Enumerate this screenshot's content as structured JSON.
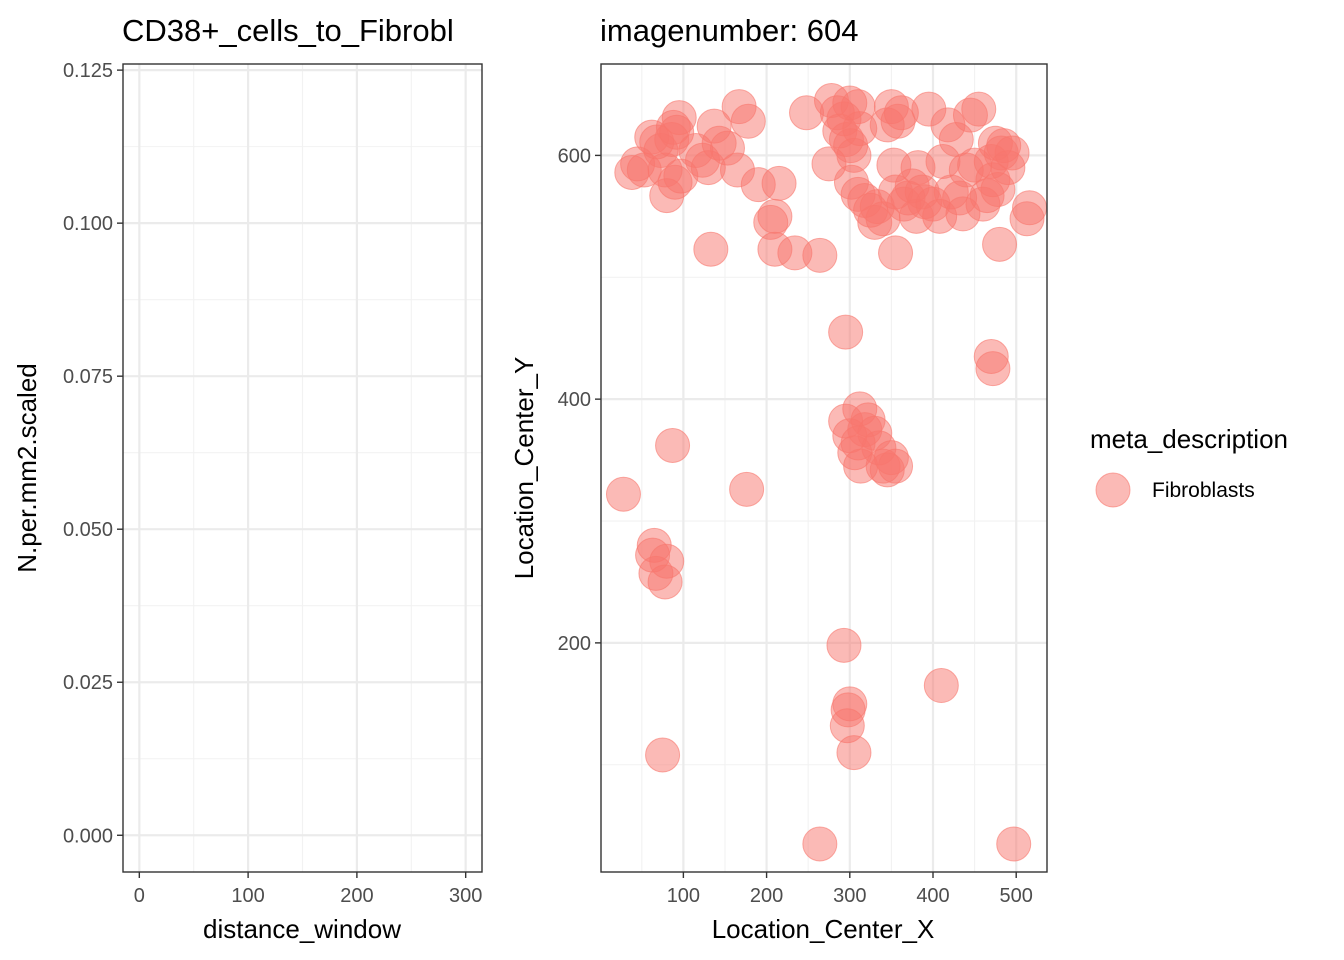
{
  "chart_data": [
    {
      "type": "line",
      "title": "CD38+_cells_to_Fibrobl",
      "xlabel": "distance_window",
      "ylabel": "N.per.mm2.scaled",
      "xlim": [
        -15,
        315
      ],
      "ylim": [
        -0.006,
        0.126
      ],
      "xticks": [
        0,
        100,
        200,
        300
      ],
      "xtick_labels": [
        "0",
        "100",
        "200",
        "300"
      ],
      "yticks": [
        0,
        0.025,
        0.05,
        0.075,
        0.1,
        0.125
      ],
      "ytick_labels": [
        "0.000",
        "0.025",
        "0.050",
        "0.075",
        "0.100",
        "0.125"
      ],
      "grid": true,
      "series": []
    },
    {
      "type": "scatter",
      "title": "imagenumber:  604",
      "xlabel": "Location_Center_X",
      "ylabel": "Location_Center_Y",
      "xlim": [
        1,
        537
      ],
      "ylim": [
        12,
        675
      ],
      "xticks": [
        100,
        200,
        300,
        400,
        500
      ],
      "xtick_labels": [
        "100",
        "200",
        "300",
        "400",
        "500"
      ],
      "yticks": [
        200,
        400,
        600
      ],
      "ytick_labels": [
        "200",
        "400",
        "600"
      ],
      "grid": true,
      "legend_position": "right",
      "legend_title": "meta_description",
      "series": [
        {
          "name": "Fibroblasts",
          "color": "#F8766D",
          "points": [
            [
              38,
              586
            ],
            [
              45,
              593
            ],
            [
              53,
              588
            ],
            [
              62,
              615
            ],
            [
              68,
              611
            ],
            [
              73,
              604
            ],
            [
              78,
              588
            ],
            [
              80,
              567
            ],
            [
              86,
              613
            ],
            [
              88,
              623
            ],
            [
              92,
              619
            ],
            [
              95,
              631
            ],
            [
              90,
              578
            ],
            [
              97,
              583
            ],
            [
              115,
              604
            ],
            [
              123,
              596
            ],
            [
              130,
              590
            ],
            [
              137,
              624
            ],
            [
              143,
              610
            ],
            [
              153,
              606
            ],
            [
              165,
              588
            ],
            [
              167,
              640
            ],
            [
              178,
              628
            ],
            [
              190,
              576
            ],
            [
              205,
              545
            ],
            [
              210,
              550
            ],
            [
              215,
              577
            ],
            [
              210,
              523
            ],
            [
              234,
              520
            ],
            [
              264,
              518
            ],
            [
              133,
              523
            ],
            [
              248,
              635
            ],
            [
              278,
              645
            ],
            [
              285,
              635
            ],
            [
              293,
              630
            ],
            [
              300,
              643
            ],
            [
              288,
              620
            ],
            [
              296,
              613
            ],
            [
              301,
              608
            ],
            [
              305,
              600
            ],
            [
              310,
              640
            ],
            [
              312,
              622
            ],
            [
              275,
              593
            ],
            [
              302,
              578
            ],
            [
              310,
              568
            ],
            [
              318,
              563
            ],
            [
              325,
              555
            ],
            [
              330,
              545
            ],
            [
              333,
              558
            ],
            [
              340,
              548
            ],
            [
              345,
              625
            ],
            [
              350,
              640
            ],
            [
              353,
              592
            ],
            [
              355,
              570
            ],
            [
              358,
              628
            ],
            [
              362,
              635
            ],
            [
              365,
              560
            ],
            [
              370,
              565
            ],
            [
              375,
              575
            ],
            [
              380,
              550
            ],
            [
              382,
              590
            ],
            [
              387,
              570
            ],
            [
              390,
              562
            ],
            [
              395,
              638
            ],
            [
              400,
              560
            ],
            [
              408,
              550
            ],
            [
              412,
              595
            ],
            [
              418,
              625
            ],
            [
              422,
              570
            ],
            [
              428,
              613
            ],
            [
              432,
              565
            ],
            [
              436,
              552
            ],
            [
              440,
              588
            ],
            [
              445,
              633
            ],
            [
              450,
              592
            ],
            [
              455,
              638
            ],
            [
              460,
              560
            ],
            [
              465,
              567
            ],
            [
              470,
              595
            ],
            [
              472,
              580
            ],
            [
              475,
              610
            ],
            [
              478,
              572
            ],
            [
              482,
              602
            ],
            [
              485,
              608
            ],
            [
              490,
              590
            ],
            [
              495,
              602
            ],
            [
              480,
              527
            ],
            [
              513,
              548
            ],
            [
              516,
              557
            ],
            [
              355,
              520
            ],
            [
              295,
              455
            ],
            [
              470,
              435
            ],
            [
              472,
              425
            ],
            [
              87,
              362
            ],
            [
              28,
              322
            ],
            [
              176,
              326
            ],
            [
              295,
              382
            ],
            [
              312,
              392
            ],
            [
              318,
              375
            ],
            [
              322,
              383
            ],
            [
              330,
              372
            ],
            [
              335,
              360
            ],
            [
              340,
              345
            ],
            [
              345,
              342
            ],
            [
              350,
              352
            ],
            [
              355,
              345
            ],
            [
              300,
              370
            ],
            [
              306,
              356
            ],
            [
              310,
              364
            ],
            [
              313,
              345
            ],
            [
              65,
              280
            ],
            [
              63,
              272
            ],
            [
              67,
              257
            ],
            [
              80,
              267
            ],
            [
              78,
              250
            ],
            [
              293,
              198
            ],
            [
              300,
              150
            ],
            [
              298,
              145
            ],
            [
              297,
              132
            ],
            [
              305,
              110
            ],
            [
              410,
              165
            ],
            [
              75,
              108
            ],
            [
              264,
              35
            ],
            [
              497,
              35
            ]
          ]
        }
      ]
    }
  ]
}
